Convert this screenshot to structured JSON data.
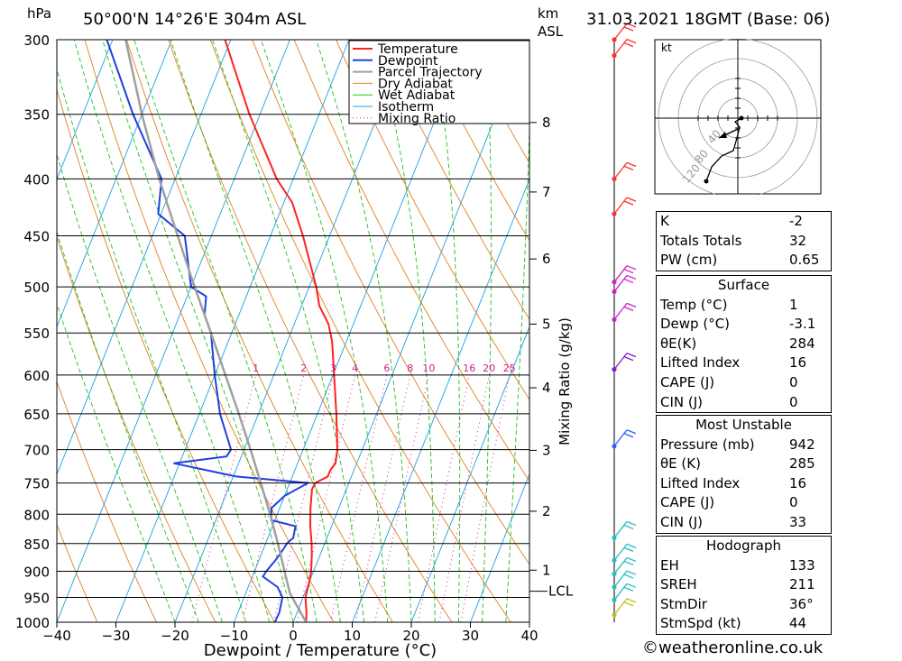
{
  "header": {
    "hpa_label": "hPa",
    "location": "50°00'N  14°26'E  304m  ASL",
    "km_label": "km",
    "asl_label": "ASL",
    "datetime": "31.03.2021  18GMT  (Base: 06)"
  },
  "chart_data": {
    "type": "line",
    "title": "50°00'N  14°26'E  304m  ASL",
    "xlabel": "Dewpoint / Temperature (°C)",
    "ylabel": "hPa",
    "xlim": [
      -40,
      40
    ],
    "ylim": [
      1000,
      300
    ],
    "skew_note": "skew-T log-p diagram",
    "x_ticks": [
      "−40",
      "−30",
      "−20",
      "−10",
      "0",
      "10",
      "20",
      "30",
      "40"
    ],
    "x_tick_values": [
      -40,
      -30,
      -20,
      -10,
      0,
      10,
      20,
      30,
      40
    ],
    "pressure_levels": [
      300,
      350,
      400,
      450,
      500,
      550,
      600,
      650,
      700,
      750,
      800,
      850,
      900,
      950,
      1000
    ],
    "pressure_labels": [
      "300",
      "350",
      "400",
      "450",
      "500",
      "550",
      "600",
      "650",
      "700",
      "750",
      "800",
      "850",
      "900",
      "950",
      "1000"
    ],
    "km_ticks": [
      {
        "label": "1",
        "p": 898
      },
      {
        "label": "2",
        "p": 795
      },
      {
        "label": "3",
        "p": 701
      },
      {
        "label": "4",
        "p": 616
      },
      {
        "label": "5",
        "p": 540
      },
      {
        "label": "6",
        "p": 472
      },
      {
        "label": "7",
        "p": 411
      },
      {
        "label": "8",
        "p": 356
      }
    ],
    "lcl_label": "LCL",
    "lcl_pressure": 938,
    "mixing_ratio_axis_label": "Mixing Ratio (g/kg)",
    "mixing_ratio_values": [
      1,
      2,
      3,
      4,
      6,
      8,
      10,
      16,
      20,
      25
    ],
    "mixing_ratio_labels": [
      "1",
      "2",
      "3",
      "4",
      "6",
      "8",
      "10",
      "16",
      "20",
      "25"
    ],
    "legend": [
      "Temperature",
      "Dewpoint",
      "Parcel Trajectory",
      "Dry Adiabat",
      "Wet Adiabat",
      "Isotherm",
      "Mixing Ratio"
    ],
    "colors": {
      "temperature": "#ff2020",
      "dewpoint": "#2040e0",
      "parcel": "#a0a0a0",
      "dry_adiabat": "#e08020",
      "wet_adiabat": "#20c020",
      "isotherm": "#20a0e0",
      "mixing_ratio": "#d0208a",
      "wind_upper": "#ff3030",
      "wind_mid": "#cc20cc",
      "wind_mid2": "#8020cc",
      "wind_low": "#3060ff",
      "wind_surface": "#20c0c0",
      "wind_ground": "#c0c020"
    },
    "series": [
      {
        "name": "Temperature",
        "points": [
          [
            1000,
            2.2
          ],
          [
            980,
            1.6
          ],
          [
            950,
            0.4
          ],
          [
            920,
            0.0
          ],
          [
            900,
            -0.4
          ],
          [
            870,
            -1.4
          ],
          [
            850,
            -2.2
          ],
          [
            820,
            -3.6
          ],
          [
            790,
            -4.8
          ],
          [
            760,
            -5.8
          ],
          [
            750,
            -5.7
          ],
          [
            740,
            -4.0
          ],
          [
            730,
            -4.0
          ],
          [
            720,
            -3.6
          ],
          [
            700,
            -4.2
          ],
          [
            650,
            -6.8
          ],
          [
            600,
            -9.8
          ],
          [
            560,
            -12.4
          ],
          [
            540,
            -14.2
          ],
          [
            520,
            -17.0
          ],
          [
            500,
            -18.8
          ],
          [
            450,
            -24.5
          ],
          [
            420,
            -28.6
          ],
          [
            400,
            -32.8
          ],
          [
            350,
            -41.8
          ],
          [
            300,
            -51.0
          ]
        ]
      },
      {
        "name": "Dewpoint",
        "points": [
          [
            1000,
            -3.1
          ],
          [
            980,
            -3.0
          ],
          [
            950,
            -3.5
          ],
          [
            930,
            -5.0
          ],
          [
            910,
            -8.2
          ],
          [
            900,
            -8.0
          ],
          [
            880,
            -7.2
          ],
          [
            860,
            -6.6
          ],
          [
            850,
            -6.4
          ],
          [
            840,
            -5.7
          ],
          [
            820,
            -6.1
          ],
          [
            810,
            -10.6
          ],
          [
            790,
            -11.4
          ],
          [
            770,
            -10.0
          ],
          [
            750,
            -6.9
          ],
          [
            740,
            -19.5
          ],
          [
            720,
            -31.0
          ],
          [
            710,
            -22.5
          ],
          [
            700,
            -22.2
          ],
          [
            650,
            -26.5
          ],
          [
            600,
            -30.0
          ],
          [
            550,
            -33.5
          ],
          [
            530,
            -35.8
          ],
          [
            510,
            -36.8
          ],
          [
            500,
            -40.0
          ],
          [
            450,
            -44.5
          ],
          [
            430,
            -50.5
          ],
          [
            400,
            -52.3
          ],
          [
            350,
            -61.5
          ],
          [
            300,
            -71.0
          ]
        ]
      },
      {
        "name": "Parcel Trajectory",
        "points": [
          [
            1000,
            2.2
          ],
          [
            942,
            -2.5
          ],
          [
            900,
            -4.9
          ],
          [
            850,
            -7.9
          ],
          [
            800,
            -11.2
          ],
          [
            750,
            -14.9
          ],
          [
            700,
            -18.9
          ],
          [
            650,
            -23.3
          ],
          [
            600,
            -28.2
          ],
          [
            550,
            -33.5
          ],
          [
            500,
            -39.4
          ],
          [
            450,
            -45.7
          ],
          [
            400,
            -52.7
          ],
          [
            350,
            -60.0
          ],
          [
            300,
            -67.8
          ]
        ]
      }
    ],
    "wind_barbs": [
      {
        "p": 300,
        "color": "#ff3030"
      },
      {
        "p": 310,
        "color": "#ff3030"
      },
      {
        "p": 400,
        "color": "#ff3030"
      },
      {
        "p": 430,
        "color": "#ff3030"
      },
      {
        "p": 495,
        "color": "#cc20cc"
      },
      {
        "p": 505,
        "color": "#cc20cc"
      },
      {
        "p": 535,
        "color": "#cc20cc"
      },
      {
        "p": 593,
        "color": "#8020cc"
      },
      {
        "p": 695,
        "color": "#3060ff"
      },
      {
        "p": 840,
        "color": "#20c0c0"
      },
      {
        "p": 880,
        "color": "#20c0c0"
      },
      {
        "p": 905,
        "color": "#20c0c0"
      },
      {
        "p": 930,
        "color": "#20c0c0"
      },
      {
        "p": 955,
        "color": "#20c0c0"
      },
      {
        "p": 985,
        "color": "#c0c020"
      }
    ]
  },
  "hodograph": {
    "unit_label": "kt",
    "ring_labels": [
      "40",
      "80",
      "120"
    ]
  },
  "indices": {
    "k_label": "K",
    "k_value": "-2",
    "tt_label": "Totals Totals",
    "tt_value": "32",
    "pw_label": "PW (cm)",
    "pw_value": "0.65"
  },
  "surface": {
    "title": "Surface",
    "temp_label": "Temp (°C)",
    "temp_value": "1",
    "dewp_label": "Dewp (°C)",
    "dewp_value": "-3.1",
    "theta_label": "θE(K)",
    "theta_value": "284",
    "li_label": "Lifted Index",
    "li_value": "16",
    "cape_label": "CAPE (J)",
    "cape_value": "0",
    "cin_label": "CIN (J)",
    "cin_value": "0"
  },
  "most_unstable": {
    "title": "Most Unstable",
    "pressure_label": "Pressure (mb)",
    "pressure_value": "942",
    "theta_label": "θE (K)",
    "theta_value": "285",
    "li_label": "Lifted Index",
    "li_value": "16",
    "cape_label": "CAPE (J)",
    "cape_value": "0",
    "cin_label": "CIN (J)",
    "cin_value": "33"
  },
  "hodograph_stats": {
    "title": "Hodograph",
    "eh_label": "EH",
    "eh_value": "133",
    "sreh_label": "SREH",
    "sreh_value": "211",
    "stmdir_label": "StmDir",
    "stmdir_value": "36°",
    "stmspd_label": "StmSpd (kt)",
    "stmspd_value": "44"
  },
  "footer": {
    "copyright": "©weatheronline.co.uk"
  }
}
